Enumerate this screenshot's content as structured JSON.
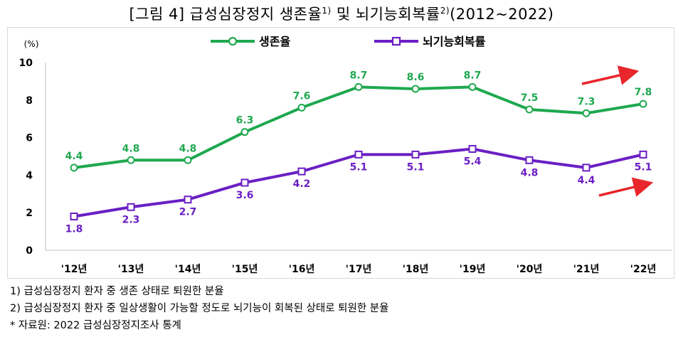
{
  "title": {
    "prefix": "[그림 4] 급성심장정지 생존율",
    "sup1": "1)",
    "mid": " 및 뇌기능회복률",
    "sup2": "2)",
    "suffix": "(2012~2022)"
  },
  "chart_data": {
    "type": "line",
    "ylabel": "(%)",
    "ylim": [
      0,
      10
    ],
    "yticks": [
      "0",
      "2",
      "4",
      "6",
      "8",
      "10"
    ],
    "categories": [
      "'12년",
      "'13년",
      "'14년",
      "'15년",
      "'16년",
      "'17년",
      "'18년",
      "'19년",
      "'20년",
      "'21년",
      "'22년"
    ],
    "series": [
      {
        "name": "생존율",
        "color": "#1fa84f",
        "values": [
          4.4,
          4.8,
          4.8,
          6.3,
          7.6,
          8.7,
          8.6,
          8.7,
          7.5,
          7.3,
          7.8
        ],
        "labels": [
          "4.4",
          "4.8",
          "4.8",
          "6.3",
          "7.6",
          "8.7",
          "8.6",
          "8.7",
          "7.5",
          "7.3",
          "7.8"
        ],
        "marker": "circle"
      },
      {
        "name": "뇌기능회복률",
        "color": "#6a1fc4",
        "values": [
          1.8,
          2.3,
          2.7,
          3.6,
          4.2,
          5.1,
          5.1,
          5.4,
          4.8,
          4.4,
          5.1
        ],
        "labels": [
          "1.8",
          "2.3",
          "2.7",
          "3.6",
          "4.2",
          "5.1",
          "5.1",
          "5.4",
          "4.8",
          "4.4",
          "5.1"
        ],
        "marker": "square"
      }
    ],
    "legend": "top-center",
    "grid": false,
    "arrow_color": "#e8262b"
  },
  "notes": [
    "1) 급성심장정지 환자 중 생존 상태로 퇴원한 분율",
    "2) 급성심장정지 환자 중 일상생활이 가능할 정도로 뇌기능이 회복된 상태로 퇴원한 분율",
    "* 자료원: 2022 급성심장정지조사 통계"
  ]
}
